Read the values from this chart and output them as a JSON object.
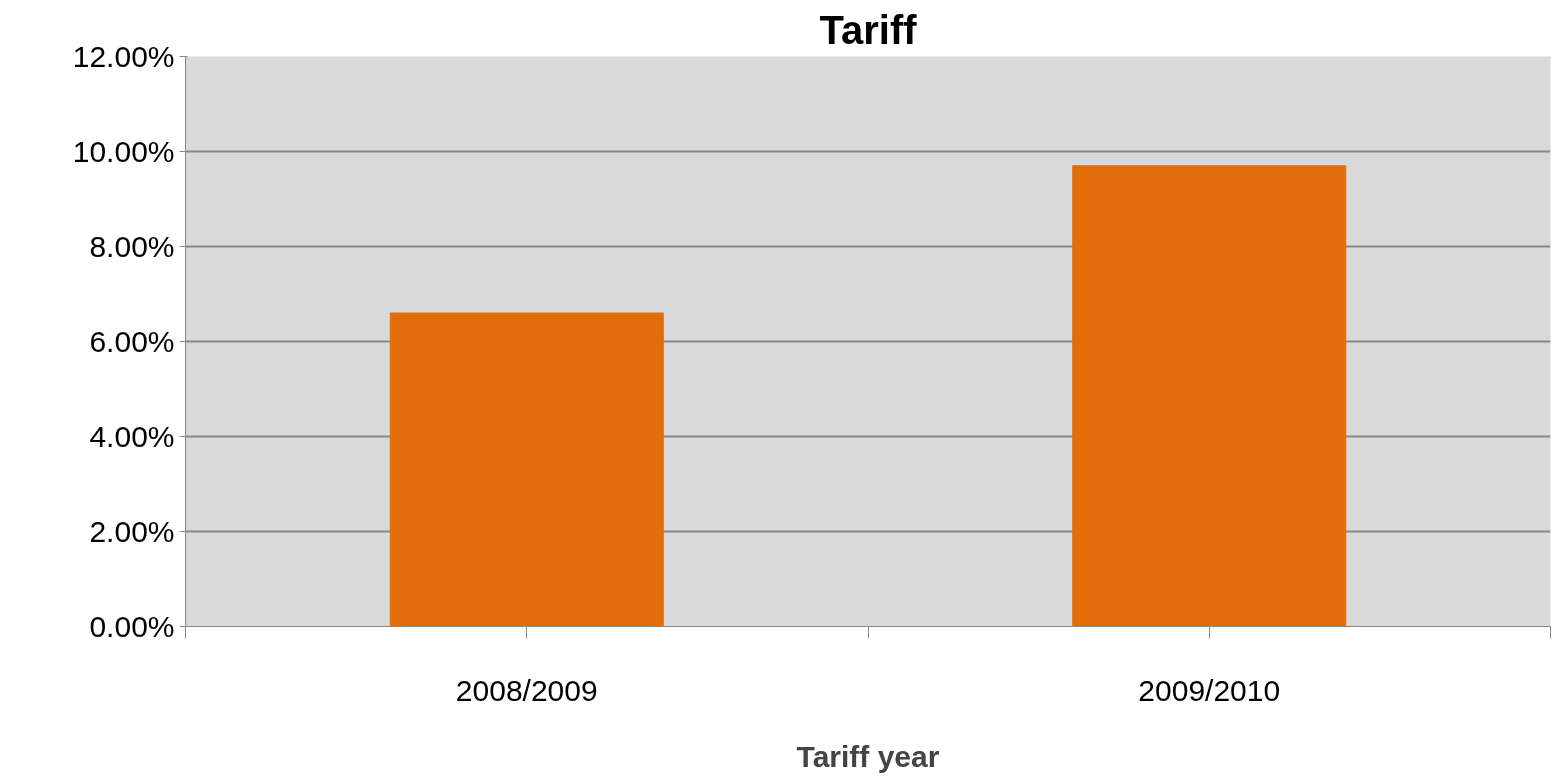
{
  "chart_data": {
    "type": "bar",
    "title": "Tariff",
    "xlabel": "Tariff year",
    "categories": [
      "2008/2009",
      "2009/2010"
    ],
    "values": [
      6.6,
      9.7
    ],
    "color": "#e36c0a",
    "ylim": [
      0,
      12
    ],
    "yticks": [
      {
        "value": 0,
        "label": "0.00%"
      },
      {
        "value": 2,
        "label": "2.00%"
      },
      {
        "value": 4,
        "label": "4.00%"
      },
      {
        "value": 6,
        "label": "6.00%"
      },
      {
        "value": 8,
        "label": "8.00%"
      },
      {
        "value": 10,
        "label": "10.00%"
      },
      {
        "value": 12,
        "label": "12.00%"
      }
    ],
    "grid": "y"
  }
}
